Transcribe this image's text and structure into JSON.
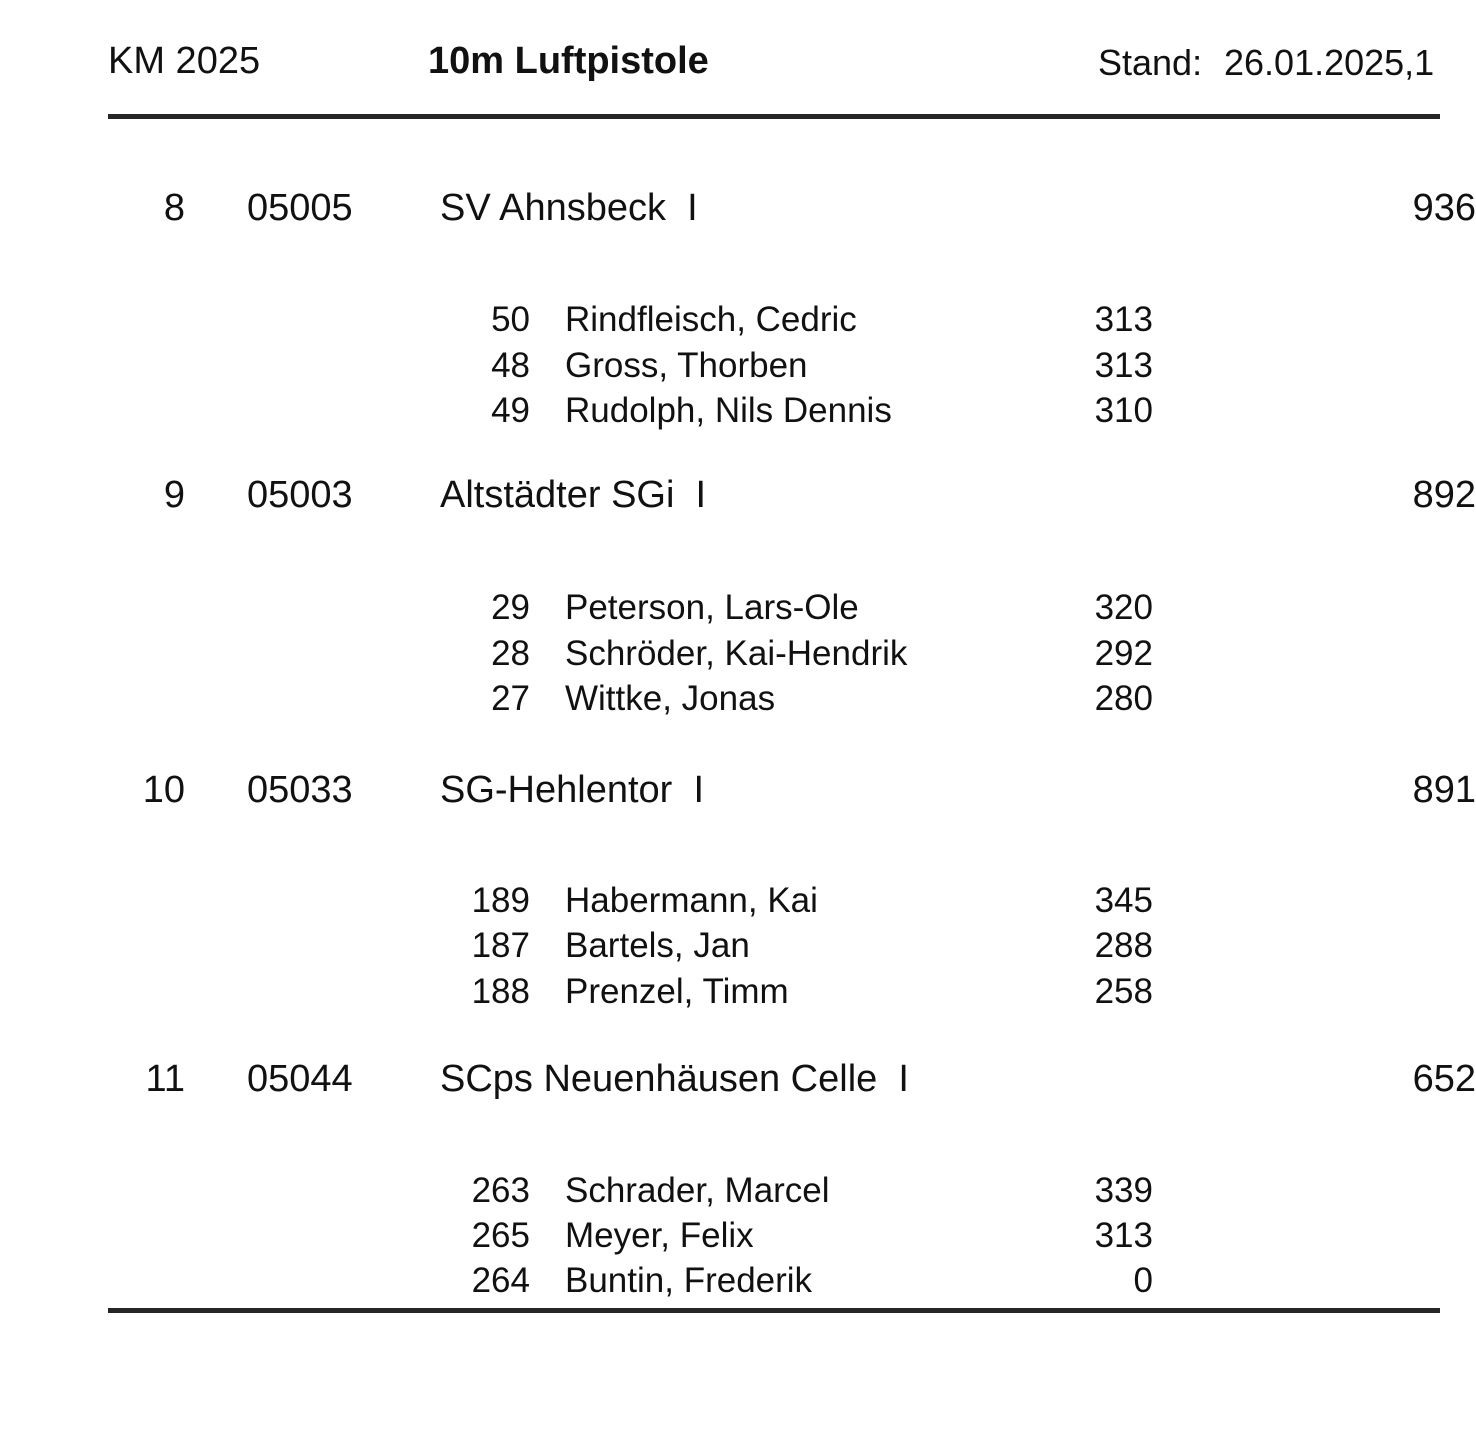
{
  "header": {
    "competition": "KM 2025",
    "discipline": "10m Luftpistole",
    "stand_label": "Stand:",
    "stand_value": "26.01.2025,1"
  },
  "teams": [
    {
      "rank": "8",
      "club_id": "05005",
      "name": "SV Ahnsbeck  I",
      "total": "936",
      "members": [
        {
          "start_no": "50",
          "name": "Rindfleisch, Cedric",
          "score": "313"
        },
        {
          "start_no": "48",
          "name": "Gross, Thorben",
          "score": "313"
        },
        {
          "start_no": "49",
          "name": "Rudolph, Nils Dennis",
          "score": "310"
        }
      ]
    },
    {
      "rank": "9",
      "club_id": "05003",
      "name": "Altstädter SGi  I",
      "total": "892",
      "members": [
        {
          "start_no": "29",
          "name": "Peterson, Lars-Ole",
          "score": "320"
        },
        {
          "start_no": "28",
          "name": "Schröder, Kai-Hendrik",
          "score": "292"
        },
        {
          "start_no": "27",
          "name": "Wittke, Jonas",
          "score": "280"
        }
      ]
    },
    {
      "rank": "10",
      "club_id": "05033",
      "name": "SG-Hehlentor  I",
      "total": "891",
      "members": [
        {
          "start_no": "189",
          "name": "Habermann, Kai",
          "score": "345"
        },
        {
          "start_no": "187",
          "name": "Bartels, Jan",
          "score": "288"
        },
        {
          "start_no": "188",
          "name": "Prenzel, Timm",
          "score": "258"
        }
      ]
    },
    {
      "rank": "11",
      "club_id": "05044",
      "name": "SCps Neuenhäusen Celle  I",
      "total": "652",
      "members": [
        {
          "start_no": "263",
          "name": "Schrader, Marcel",
          "score": "339"
        },
        {
          "start_no": "265",
          "name": "Meyer, Felix",
          "score": "313"
        },
        {
          "start_no": "264",
          "name": "Buntin, Frederik",
          "score": "0"
        }
      ]
    }
  ],
  "colors": {
    "background": "#ffffff",
    "text": "#111111",
    "rule": "#262626"
  }
}
